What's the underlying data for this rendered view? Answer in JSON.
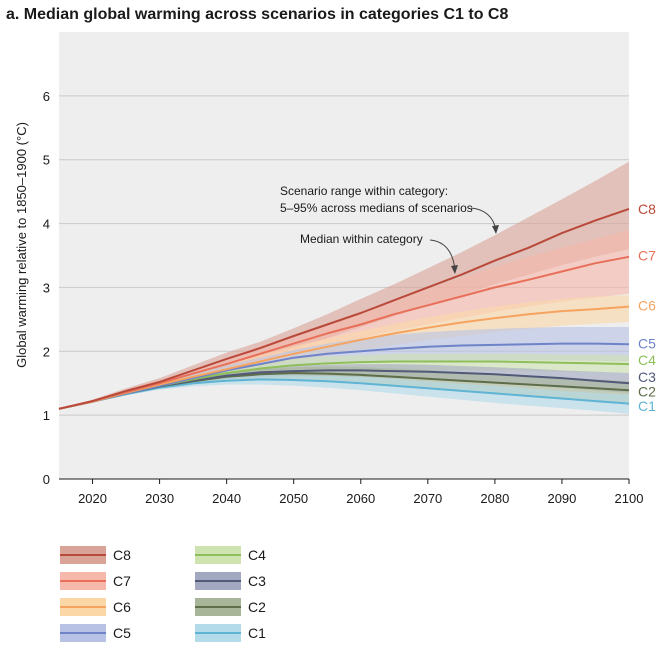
{
  "chart_data": {
    "type": "area",
    "title": "a. Median global warming across scenarios in categories C1 to C8",
    "ylabel": "Global warming relative to 1850–1900 (°C)",
    "xlabel": "",
    "xlim": [
      2015,
      2100
    ],
    "ylim": [
      0,
      7
    ],
    "x_ticks": [
      2020,
      2030,
      2040,
      2050,
      2060,
      2070,
      2080,
      2090,
      2100
    ],
    "y_ticks": [
      0,
      1,
      2,
      3,
      4,
      5,
      6
    ],
    "grid": "horizontal",
    "background": "#eeeeee",
    "annotations": {
      "range_line1": "Scenario range within category:",
      "range_line2": "5–95% across medians of scenarios",
      "median": "Median within category"
    },
    "x": [
      2015,
      2020,
      2025,
      2030,
      2035,
      2040,
      2045,
      2050,
      2055,
      2060,
      2065,
      2070,
      2075,
      2080,
      2085,
      2090,
      2095,
      2100
    ],
    "series": [
      {
        "name": "C8",
        "color": "#b94a3b",
        "band_color": "#d9a397",
        "median": [
          1.1,
          1.22,
          1.38,
          1.52,
          1.7,
          1.88,
          2.05,
          2.24,
          2.42,
          2.6,
          2.8,
          3.0,
          3.2,
          3.42,
          3.62,
          3.85,
          4.05,
          4.23
        ],
        "low": [
          1.1,
          1.2,
          1.35,
          1.47,
          1.6,
          1.76,
          1.9,
          2.05,
          2.2,
          2.38,
          2.55,
          2.72,
          2.88,
          3.05,
          3.2,
          3.35,
          3.48,
          3.6
        ],
        "high": [
          1.1,
          1.24,
          1.42,
          1.58,
          1.78,
          1.98,
          2.15,
          2.36,
          2.58,
          2.82,
          3.05,
          3.3,
          3.55,
          3.82,
          4.1,
          4.38,
          4.67,
          4.97
        ]
      },
      {
        "name": "C7",
        "color": "#e8705a",
        "band_color": "#f6b8aa",
        "median": [
          1.1,
          1.22,
          1.36,
          1.5,
          1.65,
          1.8,
          1.96,
          2.12,
          2.28,
          2.42,
          2.58,
          2.72,
          2.86,
          3.0,
          3.12,
          3.25,
          3.38,
          3.48
        ],
        "low": [
          1.1,
          1.2,
          1.33,
          1.45,
          1.58,
          1.72,
          1.85,
          1.98,
          2.1,
          2.2,
          2.32,
          2.42,
          2.52,
          2.62,
          2.7,
          2.78,
          2.84,
          2.9
        ],
        "high": [
          1.1,
          1.24,
          1.4,
          1.55,
          1.72,
          1.9,
          2.08,
          2.26,
          2.44,
          2.62,
          2.8,
          2.98,
          3.15,
          3.32,
          3.48,
          3.62,
          3.76,
          3.9
        ]
      },
      {
        "name": "C6",
        "color": "#f5a35f",
        "band_color": "#fbd7a8",
        "median": [
          1.1,
          1.21,
          1.35,
          1.48,
          1.6,
          1.72,
          1.84,
          1.96,
          2.07,
          2.18,
          2.28,
          2.37,
          2.45,
          2.52,
          2.58,
          2.63,
          2.66,
          2.7
        ],
        "low": [
          1.1,
          1.2,
          1.32,
          1.44,
          1.54,
          1.64,
          1.74,
          1.84,
          1.93,
          2.02,
          2.1,
          2.18,
          2.24,
          2.3,
          2.35,
          2.4,
          2.43,
          2.46
        ],
        "high": [
          1.1,
          1.22,
          1.37,
          1.52,
          1.66,
          1.8,
          1.94,
          2.08,
          2.2,
          2.32,
          2.43,
          2.53,
          2.62,
          2.7,
          2.77,
          2.82,
          2.86,
          2.88
        ]
      },
      {
        "name": "C5",
        "color": "#6f83c9",
        "band_color": "#b8c2e5",
        "median": [
          1.1,
          1.21,
          1.34,
          1.46,
          1.58,
          1.7,
          1.8,
          1.9,
          1.96,
          2.0,
          2.04,
          2.07,
          2.09,
          2.1,
          2.11,
          2.12,
          2.12,
          2.11
        ],
        "low": [
          1.1,
          1.2,
          1.31,
          1.42,
          1.52,
          1.62,
          1.7,
          1.77,
          1.8,
          1.82,
          1.84,
          1.85,
          1.86,
          1.86,
          1.86,
          1.86,
          1.85,
          1.84
        ],
        "high": [
          1.1,
          1.22,
          1.37,
          1.5,
          1.64,
          1.78,
          1.9,
          2.02,
          2.12,
          2.2,
          2.26,
          2.3,
          2.33,
          2.35,
          2.37,
          2.38,
          2.38,
          2.38
        ]
      },
      {
        "name": "C4",
        "color": "#8fbf5a",
        "band_color": "#cfe3b1",
        "median": [
          1.1,
          1.21,
          1.34,
          1.46,
          1.56,
          1.66,
          1.73,
          1.78,
          1.81,
          1.83,
          1.84,
          1.84,
          1.84,
          1.84,
          1.83,
          1.82,
          1.81,
          1.8
        ],
        "low": [
          1.1,
          1.2,
          1.31,
          1.42,
          1.5,
          1.58,
          1.64,
          1.68,
          1.7,
          1.71,
          1.71,
          1.71,
          1.7,
          1.7,
          1.69,
          1.68,
          1.67,
          1.66
        ],
        "high": [
          1.1,
          1.22,
          1.36,
          1.5,
          1.62,
          1.74,
          1.82,
          1.88,
          1.92,
          1.94,
          1.96,
          1.96,
          1.96,
          1.96,
          1.96,
          1.95,
          1.95,
          1.94
        ]
      },
      {
        "name": "C3",
        "color": "#525a7a",
        "band_color": "#a2a8c0",
        "median": [
          1.1,
          1.21,
          1.34,
          1.45,
          1.54,
          1.62,
          1.67,
          1.69,
          1.7,
          1.7,
          1.69,
          1.68,
          1.66,
          1.64,
          1.61,
          1.58,
          1.54,
          1.5
        ],
        "low": [
          1.1,
          1.2,
          1.32,
          1.42,
          1.5,
          1.56,
          1.6,
          1.61,
          1.61,
          1.6,
          1.58,
          1.56,
          1.53,
          1.5,
          1.47,
          1.43,
          1.39,
          1.35
        ],
        "high": [
          1.1,
          1.22,
          1.36,
          1.48,
          1.58,
          1.67,
          1.73,
          1.77,
          1.79,
          1.8,
          1.8,
          1.79,
          1.77,
          1.75,
          1.73,
          1.7,
          1.68,
          1.66
        ]
      },
      {
        "name": "C2",
        "color": "#5e6e4a",
        "band_color": "#a9b598",
        "median": [
          1.1,
          1.21,
          1.34,
          1.45,
          1.53,
          1.6,
          1.64,
          1.66,
          1.65,
          1.63,
          1.6,
          1.57,
          1.54,
          1.51,
          1.48,
          1.45,
          1.42,
          1.39
        ],
        "low": [
          1.1,
          1.2,
          1.32,
          1.42,
          1.48,
          1.53,
          1.56,
          1.56,
          1.54,
          1.51,
          1.47,
          1.43,
          1.38,
          1.34,
          1.29,
          1.25,
          1.21,
          1.17
        ],
        "high": [
          1.1,
          1.22,
          1.36,
          1.48,
          1.57,
          1.66,
          1.72,
          1.75,
          1.76,
          1.75,
          1.73,
          1.71,
          1.68,
          1.65,
          1.62,
          1.59,
          1.56,
          1.53
        ]
      },
      {
        "name": "C1",
        "color": "#5fb4d4",
        "band_color": "#b3dbea",
        "median": [
          1.1,
          1.21,
          1.33,
          1.43,
          1.5,
          1.54,
          1.56,
          1.55,
          1.53,
          1.5,
          1.46,
          1.42,
          1.38,
          1.34,
          1.3,
          1.26,
          1.22,
          1.18
        ],
        "low": [
          1.1,
          1.2,
          1.31,
          1.4,
          1.45,
          1.48,
          1.48,
          1.46,
          1.43,
          1.39,
          1.34,
          1.29,
          1.24,
          1.19,
          1.15,
          1.11,
          1.07,
          1.02
        ],
        "high": [
          1.1,
          1.22,
          1.35,
          1.46,
          1.55,
          1.6,
          1.63,
          1.63,
          1.62,
          1.6,
          1.57,
          1.53,
          1.49,
          1.46,
          1.42,
          1.38,
          1.35,
          1.32
        ]
      }
    ],
    "end_labels": [
      {
        "name": "C8",
        "y": 4.23
      },
      {
        "name": "C7",
        "y": 3.5
      },
      {
        "name": "C6",
        "y": 2.72
      },
      {
        "name": "C5",
        "y": 2.12
      },
      {
        "name": "C4",
        "y": 1.86
      },
      {
        "name": "C3",
        "y": 1.6
      },
      {
        "name": "C2",
        "y": 1.37
      },
      {
        "name": "C1",
        "y": 1.14
      }
    ],
    "legend": {
      "placement": "bottom",
      "columns": [
        [
          "C8",
          "C7",
          "C6",
          "C5"
        ],
        [
          "C4",
          "C3",
          "C2",
          "C1"
        ]
      ]
    }
  }
}
